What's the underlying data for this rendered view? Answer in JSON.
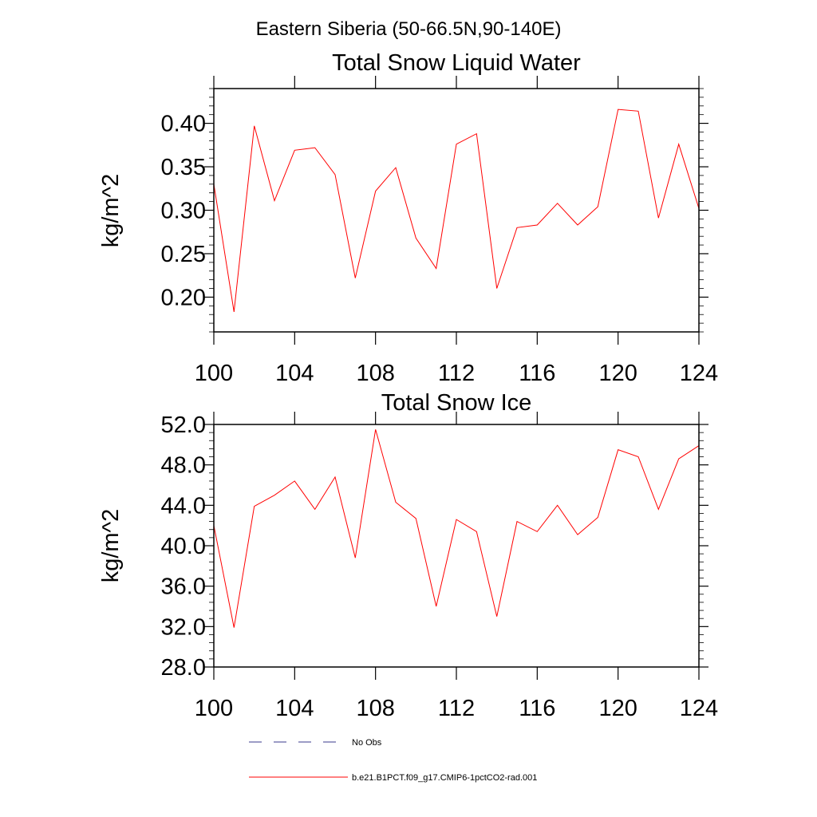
{
  "page_title": "Eastern Siberia (50-66.5N,90-140E)",
  "colors": {
    "series": "#ff0000",
    "obs": "#3a3a8c",
    "axis": "#000000"
  },
  "chart_data": [
    {
      "type": "line",
      "title": "Total Snow Liquid Water",
      "ylabel": "kg/m^2",
      "xlim": [
        100,
        124
      ],
      "ylim": [
        0.16,
        0.44
      ],
      "xticks": [
        100,
        104,
        108,
        112,
        116,
        120,
        124
      ],
      "xtick_labels": [
        "100",
        "104",
        "108",
        "112",
        "116",
        "120",
        "124"
      ],
      "yticks": [
        0.2,
        0.25,
        0.3,
        0.35,
        0.4
      ],
      "ytick_labels": [
        "0.20",
        "0.25",
        "0.30",
        "0.35",
        "0.40"
      ],
      "series": [
        {
          "name": "b.e21.B1PCT.f09_g17.CMIP6-1pctCO2-rad.001",
          "x": [
            100,
            101,
            102,
            103,
            104,
            105,
            106,
            107,
            108,
            109,
            110,
            111,
            112,
            113,
            114,
            115,
            116,
            117,
            118,
            119,
            120,
            121,
            122,
            123,
            124
          ],
          "values": [
            0.33,
            0.183,
            0.397,
            0.311,
            0.369,
            0.372,
            0.341,
            0.222,
            0.322,
            0.349,
            0.268,
            0.233,
            0.376,
            0.388,
            0.21,
            0.28,
            0.283,
            0.308,
            0.283,
            0.304,
            0.416,
            0.414,
            0.291,
            0.376,
            0.302
          ]
        }
      ]
    },
    {
      "type": "line",
      "title": "Total Snow Ice",
      "ylabel": "kg/m^2",
      "xlim": [
        100,
        124
      ],
      "ylim": [
        28.0,
        52.0
      ],
      "xticks": [
        100,
        104,
        108,
        112,
        116,
        120,
        124
      ],
      "xtick_labels": [
        "100",
        "104",
        "108",
        "112",
        "116",
        "120",
        "124"
      ],
      "yticks": [
        28.0,
        32.0,
        36.0,
        40.0,
        44.0,
        48.0,
        52.0
      ],
      "ytick_labels": [
        "28.0",
        "32.0",
        "36.0",
        "40.0",
        "44.0",
        "48.0",
        "52.0"
      ],
      "series": [
        {
          "name": "b.e21.B1PCT.f09_g17.CMIP6-1pctCO2-rad.001",
          "x": [
            100,
            101,
            102,
            103,
            104,
            105,
            106,
            107,
            108,
            109,
            110,
            111,
            112,
            113,
            114,
            115,
            116,
            117,
            118,
            119,
            120,
            121,
            122,
            123,
            124
          ],
          "values": [
            42.0,
            31.9,
            43.9,
            45.0,
            46.4,
            43.6,
            46.8,
            38.8,
            51.5,
            44.3,
            42.7,
            34.0,
            42.6,
            41.4,
            33.0,
            42.4,
            41.4,
            44.0,
            41.1,
            42.8,
            49.5,
            48.8,
            43.6,
            48.6,
            49.9
          ]
        }
      ]
    }
  ],
  "legend": {
    "placement": "bottom",
    "items": [
      {
        "label": "No Obs",
        "style": "dashed"
      },
      {
        "label": "b.e21.B1PCT.f09_g17.CMIP6-1pctCO2-rad.001",
        "style": "solid"
      }
    ]
  }
}
